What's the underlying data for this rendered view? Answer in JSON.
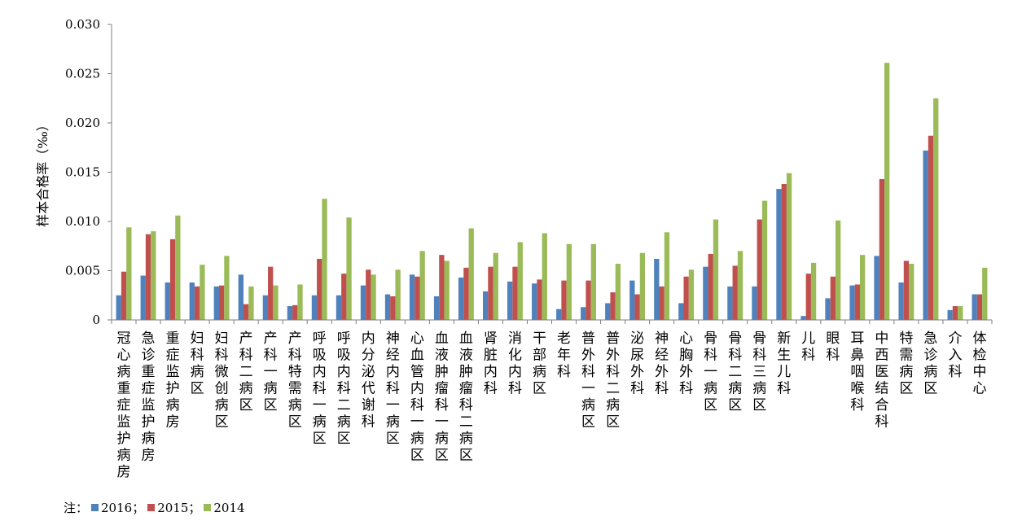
{
  "chart_data": {
    "type": "bar",
    "ylabel": "样本合格率（‰）",
    "ylim": [
      0,
      0.03
    ],
    "yticks": [
      "0",
      "0.005",
      "0.010",
      "0.015",
      "0.020",
      "0.025",
      "0.030"
    ],
    "grid": false,
    "categories": [
      "冠心病重症监护病房",
      "急诊重症监护病房",
      "重症监护病房",
      "妇科病区",
      "妇科微创病区",
      "产科二病区",
      "产科一病区",
      "产科特需病区",
      "呼吸内科一病区",
      "呼吸内科二病区",
      "内分泌代谢科",
      "神经内科一病区",
      "心血管内科一病区",
      "血液肿瘤科一病区",
      "血液肿瘤科二病区",
      "肾脏内科",
      "消化内科",
      "干部病区",
      "老年科",
      "普外科一病区",
      "普外科二病区",
      "泌尿外科",
      "神经外科",
      "心胸外科",
      "骨科一病区",
      "骨科二病区",
      "骨科三病区",
      "新生儿科",
      "儿科",
      "眼科",
      "耳鼻咽喉科",
      "中西医结合科",
      "特需病区",
      "急诊病区",
      "介入科",
      "体检中心"
    ],
    "series": [
      {
        "name": "2016",
        "color": "#4f81bd",
        "values": [
          0.0025,
          0.0045,
          0.0038,
          0.0038,
          0.0034,
          0.0046,
          0.0025,
          0.0014,
          0.0025,
          0.0025,
          0.0035,
          0.0026,
          0.0046,
          0.0024,
          0.0043,
          0.0029,
          0.0039,
          0.0037,
          0.0011,
          0.0013,
          0.0017,
          0.004,
          0.0062,
          0.0017,
          0.0054,
          0.0034,
          0.0034,
          0.0133,
          0.0004,
          0.0022,
          0.0035,
          0.0065,
          0.0038,
          0.0172,
          0.001,
          0.0026
        ]
      },
      {
        "name": "2015",
        "color": "#c0504d",
        "values": [
          0.0049,
          0.0087,
          0.0082,
          0.0034,
          0.0035,
          0.0016,
          0.0054,
          0.0015,
          0.0062,
          0.0047,
          0.0051,
          0.0024,
          0.0044,
          0.0066,
          0.0053,
          0.0054,
          0.0054,
          0.0041,
          0.004,
          0.004,
          0.0028,
          0.0026,
          0.0034,
          0.0044,
          0.0067,
          0.0055,
          0.0102,
          0.0138,
          0.0047,
          0.0044,
          0.0036,
          0.0143,
          0.006,
          0.0187,
          0.0014,
          0.0026
        ]
      },
      {
        "name": "2014",
        "color": "#9bbb59",
        "values": [
          0.0094,
          0.009,
          0.0106,
          0.0056,
          0.0065,
          0.0034,
          0.0035,
          0.0036,
          0.0123,
          0.0104,
          0.0046,
          0.0051,
          0.007,
          0.006,
          0.0093,
          0.0068,
          0.0079,
          0.0088,
          0.0077,
          0.0077,
          0.0057,
          0.0068,
          0.0089,
          0.0051,
          0.0102,
          0.007,
          0.0121,
          0.0149,
          0.0058,
          0.0101,
          0.0066,
          0.0261,
          0.0057,
          0.0225,
          0.0014,
          0.0053
        ]
      }
    ]
  },
  "note": {
    "prefix": "注：",
    "items": [
      {
        "label": "2016；",
        "color": "#4f81bd"
      },
      {
        "label": "2015；",
        "color": "#c0504d"
      },
      {
        "label": "2014",
        "color": "#9bbb59"
      }
    ]
  }
}
